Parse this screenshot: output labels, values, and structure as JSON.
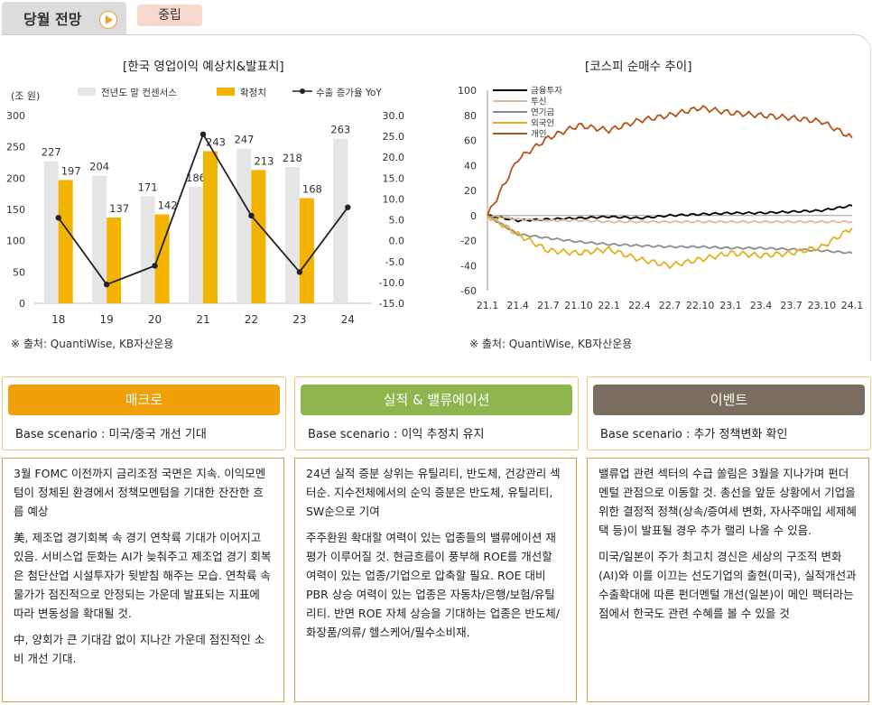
{
  "header": {
    "title": "당월 전망",
    "badge": "중립"
  },
  "chart_data": [
    {
      "type": "bar",
      "title": "[한국 영업이익 예상치&발표치]",
      "ylabel": "(조 원)",
      "ylim": [
        0,
        300
      ],
      "y2lim": [
        -15,
        30
      ],
      "yticks": [
        "0",
        "50",
        "100",
        "150",
        "200",
        "250",
        "300"
      ],
      "y2ticks": [
        "-15.0",
        "-10.0",
        "-5.0",
        "0.0",
        "5.0",
        "10.0",
        "15.0",
        "20.0",
        "25.0",
        "30.0"
      ],
      "categories": [
        "18",
        "19",
        "20",
        "21",
        "22",
        "23",
        "24"
      ],
      "series": [
        {
          "name": "전년도 말 컨센서스",
          "type": "bar",
          "color": "#e5e5e5",
          "values": [
            227,
            204,
            171,
            186,
            247,
            218,
            263
          ]
        },
        {
          "name": "확정치",
          "type": "bar",
          "color": "#f2b400",
          "values": [
            197,
            137,
            142,
            243,
            213,
            168,
            null
          ]
        },
        {
          "name": "수출 증가율 YoY",
          "type": "line",
          "axis": "right",
          "color": "#222222",
          "values": [
            5.5,
            -10.5,
            -6.0,
            25.5,
            6.0,
            -7.5,
            8.0
          ]
        }
      ],
      "source": "※ 출처: QuantiWise, KB자산운용"
    },
    {
      "type": "line",
      "title": "[코스피 순매수 추이]",
      "ylim": [
        -60,
        100
      ],
      "yticks": [
        "100",
        "80",
        "60",
        "40",
        "20",
        "0",
        "-20",
        "-40",
        "-60"
      ],
      "x": [
        "21.1",
        "21.4",
        "21.7",
        "21.10",
        "22.1",
        "22.4",
        "22.7",
        "22.10",
        "23.1",
        "23.4",
        "23.7",
        "23.10",
        "24.1"
      ],
      "series": [
        {
          "name": "금융투자",
          "color": "#000000",
          "values": [
            0,
            -4,
            -3,
            -2,
            -1,
            -2,
            0,
            1,
            2,
            2,
            3,
            4,
            8
          ]
        },
        {
          "name": "투신",
          "color": "#e2b79a",
          "values": [
            0,
            -3,
            -4,
            -4,
            -5,
            -5,
            -5,
            -5,
            -5,
            -5,
            -5,
            -5,
            -5
          ]
        },
        {
          "name": "연기금",
          "color": "#8c8c8c",
          "values": [
            0,
            -15,
            -18,
            -21,
            -23,
            -24,
            -25,
            -25,
            -26,
            -26,
            -27,
            -28,
            -30
          ]
        },
        {
          "name": "외국인",
          "color": "#e5b01f",
          "values": [
            0,
            -15,
            -28,
            -30,
            -27,
            -35,
            -40,
            -35,
            -30,
            -32,
            -30,
            -25,
            -10
          ]
        },
        {
          "name": "개인",
          "color": "#b5531b",
          "values": [
            0,
            45,
            62,
            72,
            68,
            76,
            80,
            86,
            82,
            80,
            78,
            75,
            62
          ]
        }
      ],
      "source": "※ 출처: QuantiWise, KB자산운용"
    }
  ],
  "columns": [
    {
      "header": "매크로",
      "color": "#f2a007",
      "scenario": "Base scenario : 미국/중국 개선 기대",
      "paragraphs": [
        "3월 FOMC 이전까지 금리조정 국면은 지속. 이익모멘텀이 정체된 환경에서 정책모멘텀을 기대한 잔잔한 흐름 예상",
        "美, 제조업 경기회복 속 경기 연착륙 기대가 이어지고 있음. 서비스업 둔화는 AI가 늦춰주고 제조업 경기 회복은 첨단산업 시설투자가 뒷받침 해주는 모습. 연착륙 속 물가가 점진적으로 안정되는 가운데 발표되는 지표에 따라 변동성을 확대될 것.",
        "中, 양회가 큰 기대감 없이 지나간 가운데 점진적인 소비 개선 기대."
      ]
    },
    {
      "header": "실적 & 밸류에이션",
      "color": "#8fb54f",
      "scenario": "Base scenario : 이익 추정치 유지",
      "paragraphs": [
        "24년 실적 증분 상위는 유틸리티, 반도체, 건강관리 섹터순. 지수전체에서의 순익 증분은 반도체, 유틸리티, SW순으로 기여",
        "주주환원 확대할 여력이 있는 업종들의 밸류에이션 재평가 이루어질 것. 현금흐름이 풍부해 ROE를 개선할 여력이 있는 업종/기업으로 압축할 필요. ROE 대비 PBR 상승 여력이 있는 업종은 자동차/은행/보험/유틸리티. 반면 ROE 자체 상승을 기대하는 업종은 반도체/화장품/의류/ 헬스케어/필수소비재."
      ]
    },
    {
      "header": "이벤트",
      "color": "#7b6e60",
      "scenario": "Base scenario : 추가 정책변화 확인",
      "paragraphs": [
        "밸류업 관련 섹터의 수급 쏠림은 3월을 지나가며 펀더멘털 관점으로 이동할 것. 총선을 앞둔 상황에서 기업을 위한 결정적 정책(상속/증여세 변화, 자사주매입 세제혜택 등)이 발표될 경우 추가 랠리 나올 수 있음.",
        "미국/일본이 주가 최고치 경신은 세상의 구조적 변화(AI)와 이를 이끄는 선도기업의 출현(미국), 실적개선과 수출확대에 따른 펀더멘털 개선(일본)이 메인 팩터라는 점에서 한국도 관련 수혜를 볼 수 있을 것"
      ]
    }
  ]
}
